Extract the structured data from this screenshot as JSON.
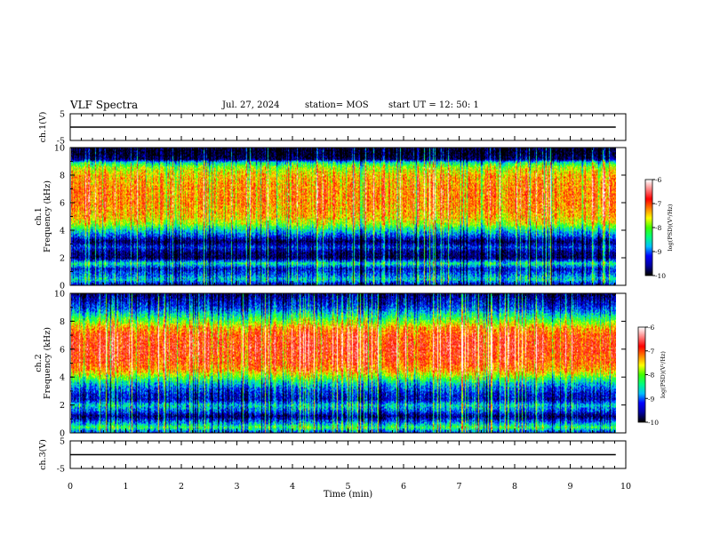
{
  "header": {
    "title": "VLF Spectra",
    "date": "Jul. 27, 2024",
    "station": "station= MOS",
    "start": "start UT =  12: 50: 1"
  },
  "colors": {
    "trace": "#000000",
    "colormap": [
      "#000000",
      "#0000a0",
      "#0000ff",
      "#00c0ff",
      "#00ff80",
      "#40ff00",
      "#ffff00",
      "#ff8000",
      "#ff0000",
      "#ff8080",
      "#ffffff"
    ]
  },
  "chart_data": [
    {
      "type": "line",
      "panel": "ch1",
      "ylabel": "ch.1(V)",
      "ylim": [
        -5,
        5
      ],
      "yticks": [
        "5",
        "-5"
      ],
      "xlim": [
        0,
        10
      ],
      "series": [
        {
          "x": [
            0,
            9.82
          ],
          "values": [
            0,
            0
          ]
        }
      ]
    },
    {
      "type": "heatmap",
      "panel": "ch1-spectrogram",
      "ylabel": "ch.1\nFrequency (kHz)",
      "ylim": [
        0,
        10
      ],
      "yticks": [
        "0",
        "2",
        "4",
        "6",
        "8",
        "10"
      ],
      "xlim": [
        0,
        10
      ],
      "x_extent": [
        0,
        9.82
      ],
      "colorbar": {
        "label": "log(PSD)(V²/Hz)",
        "range": [
          -10,
          -6
        ],
        "ticks": [
          "-6",
          "-7",
          "-8",
          "-9",
          "-10"
        ]
      },
      "psd_profile": {
        "freq_khz": [
          0,
          0.4,
          0.8,
          1.2,
          1.6,
          2.0,
          2.4,
          2.8,
          3.2,
          3.6,
          4.0,
          4.5,
          5.0,
          6.0,
          7.0,
          8.0,
          8.6,
          9.0,
          9.2,
          9.6,
          10.0
        ],
        "log_psd": [
          -9.6,
          -8.6,
          -9.0,
          -9.4,
          -8.4,
          -9.8,
          -9.7,
          -9.2,
          -9.8,
          -9.1,
          -8.6,
          -7.8,
          -7.4,
          -7.2,
          -7.2,
          -7.4,
          -7.8,
          -8.6,
          -9.8,
          -10.0,
          -10.0
        ]
      }
    },
    {
      "type": "heatmap",
      "panel": "ch2-spectrogram",
      "ylabel": "ch.2\nFrequency (kHz)",
      "ylim": [
        0,
        10
      ],
      "yticks": [
        "0",
        "2",
        "4",
        "6",
        "8",
        "10"
      ],
      "xlim": [
        0,
        10
      ],
      "x_extent": [
        0,
        9.82
      ],
      "colorbar": {
        "label": "log(PSD)(V²/Hz)",
        "range": [
          -10,
          -6
        ],
        "ticks": [
          "-6",
          "-7",
          "-8",
          "-9",
          "-10"
        ]
      },
      "psd_profile": {
        "freq_khz": [
          0,
          0.4,
          0.8,
          1.2,
          1.6,
          2.0,
          2.4,
          2.8,
          3.2,
          3.6,
          4.0,
          4.5,
          5.0,
          6.0,
          7.0,
          7.6,
          8.0,
          8.6,
          9.0,
          9.5,
          10.0
        ],
        "log_psd": [
          -9.2,
          -8.2,
          -9.0,
          -9.7,
          -9.0,
          -8.6,
          -9.4,
          -9.3,
          -9.0,
          -8.6,
          -8.0,
          -7.3,
          -7.0,
          -6.8,
          -6.9,
          -7.3,
          -7.9,
          -8.6,
          -9.1,
          -9.4,
          -9.7
        ]
      }
    },
    {
      "type": "line",
      "panel": "ch3",
      "ylabel": "ch.3(V)",
      "ylim": [
        -5,
        5
      ],
      "yticks": [
        "5",
        "-5"
      ],
      "xlim": [
        0,
        10
      ],
      "xlabel": "Time (min)",
      "xticks": [
        "0",
        "1",
        "2",
        "3",
        "4",
        "5",
        "6",
        "7",
        "8",
        "9",
        "10"
      ],
      "series": [
        {
          "x": [
            0,
            9.82
          ],
          "values": [
            0,
            0
          ]
        }
      ]
    }
  ]
}
